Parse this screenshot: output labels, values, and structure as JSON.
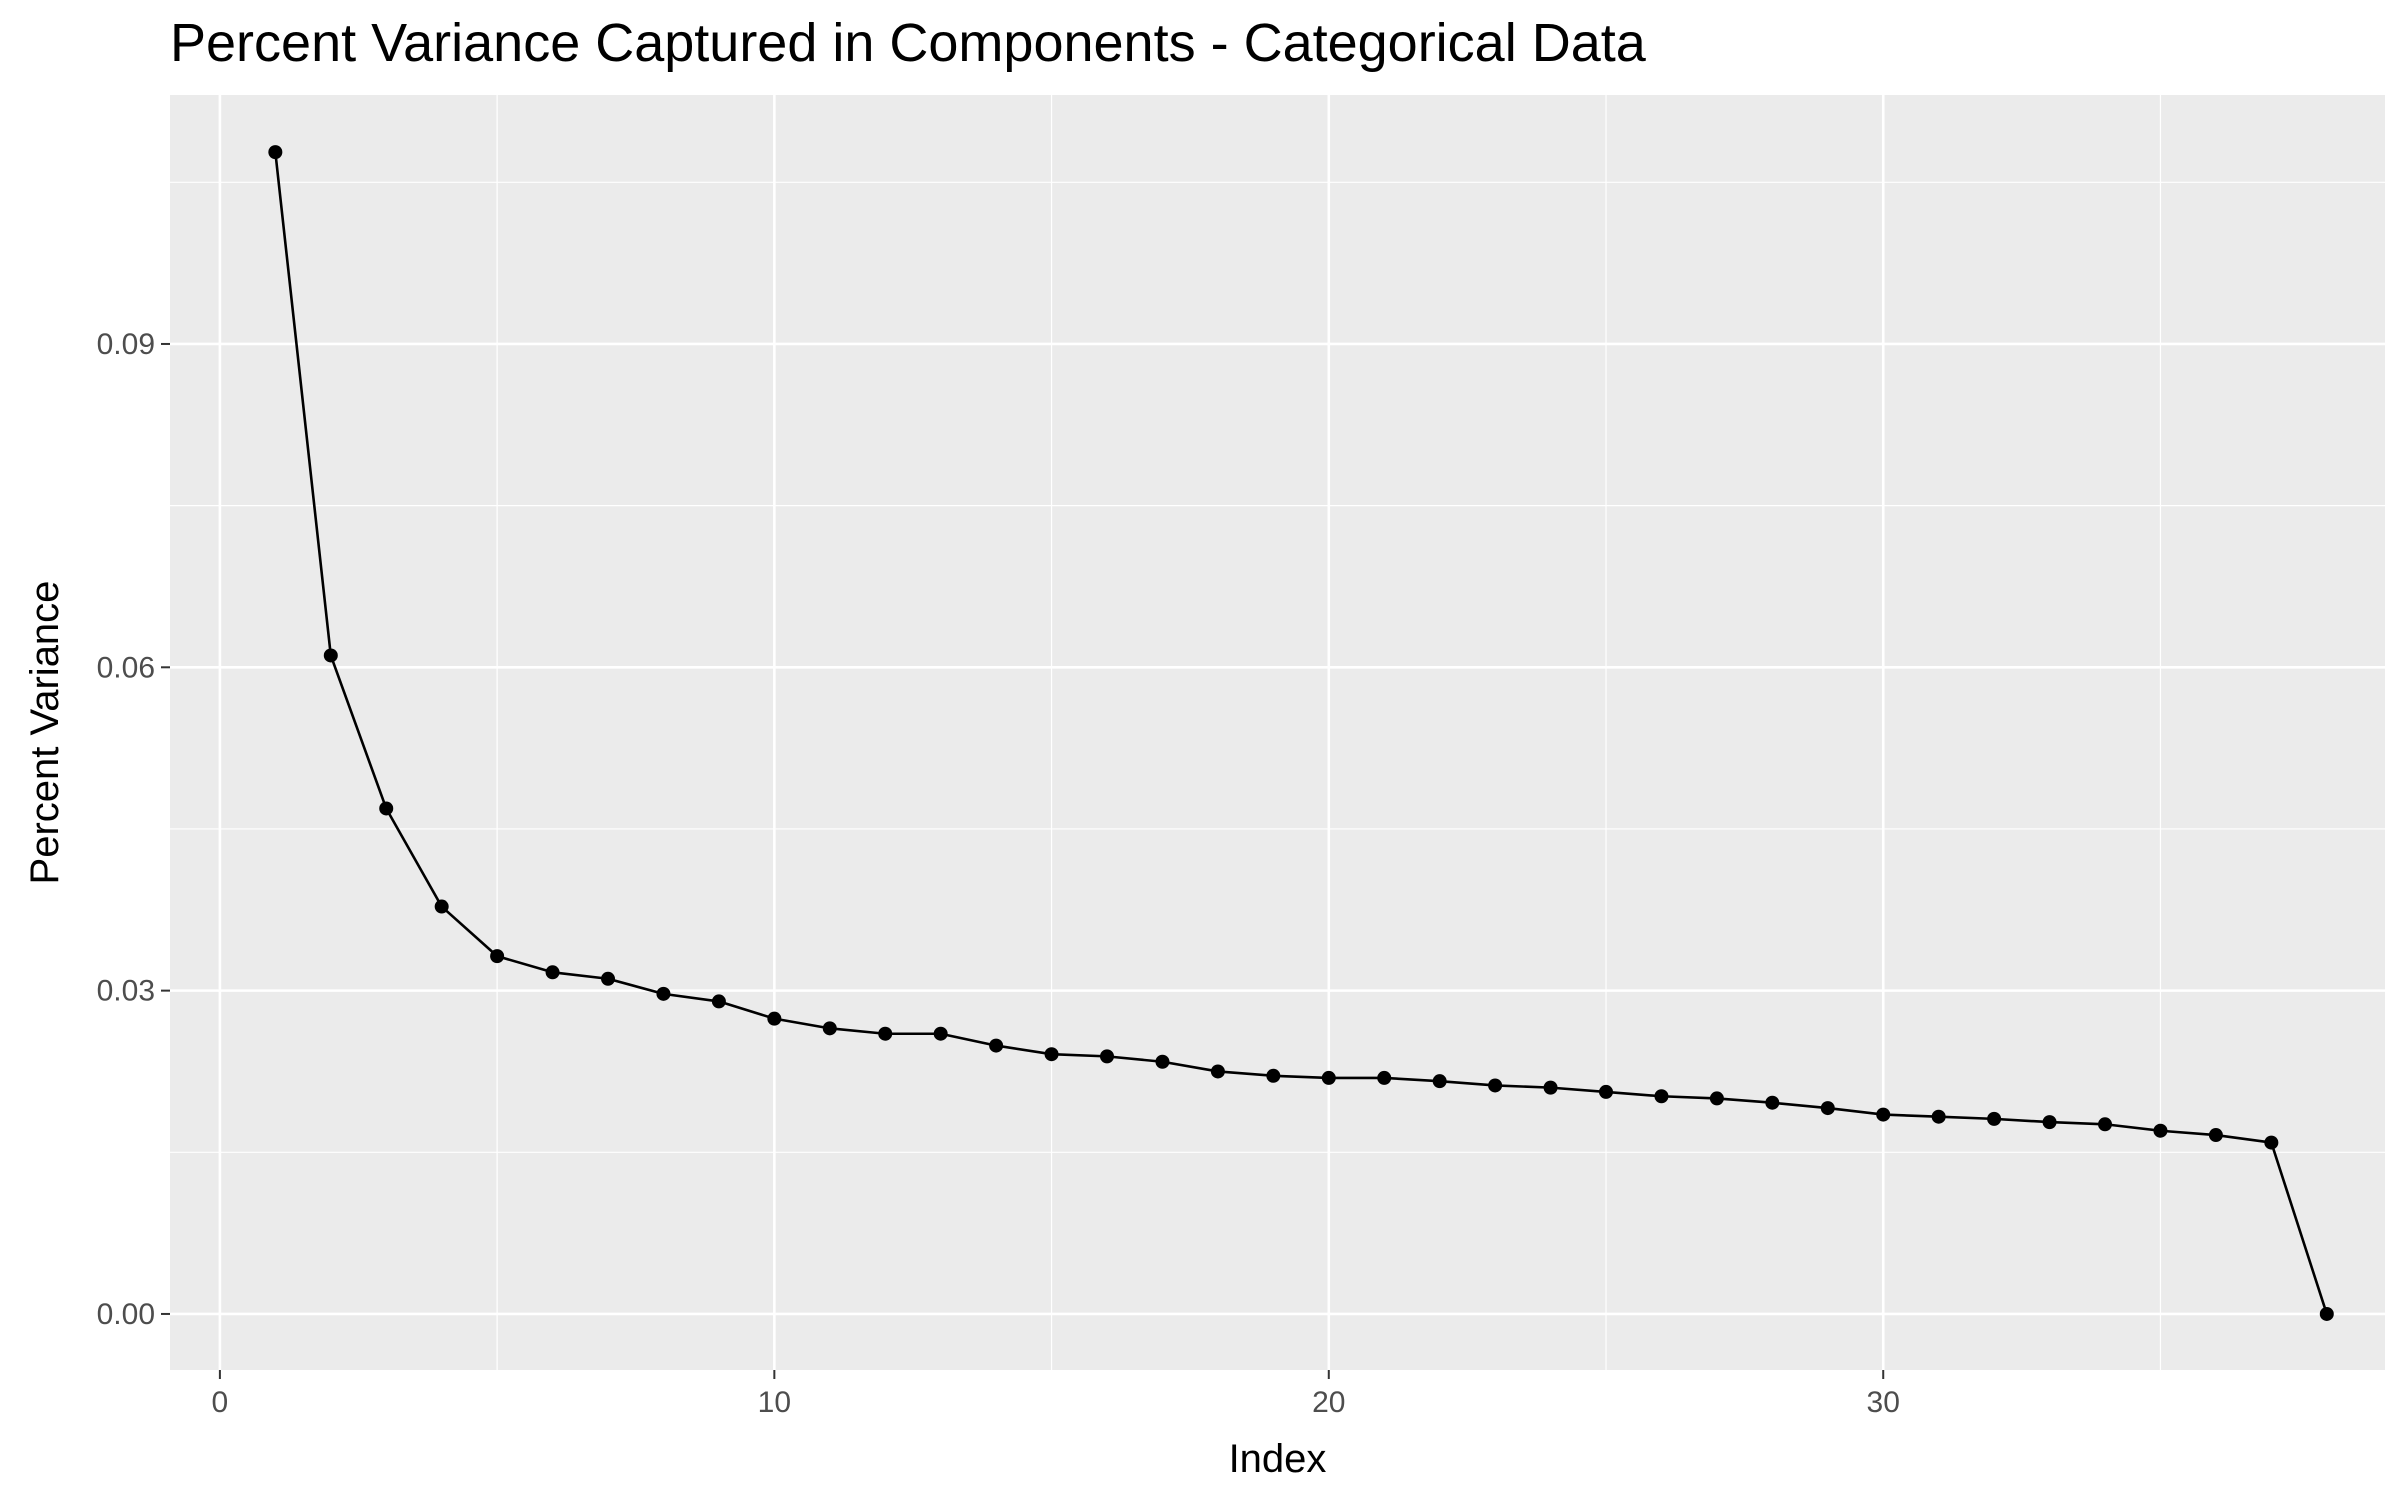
{
  "chart_data": {
    "type": "line",
    "title": "Percent Variance Captured in Components - Categorical Data",
    "xlabel": "Index",
    "ylabel": "Percent Variance",
    "xlim": [
      -0.9,
      39.05
    ],
    "ylim": [
      -0.0052,
      0.1131
    ],
    "x_ticks": [
      0,
      10,
      20,
      30
    ],
    "x_tick_labels": [
      "0",
      "10",
      "20",
      "30"
    ],
    "y_ticks": [
      0.0,
      0.03,
      0.06,
      0.09
    ],
    "y_tick_labels": [
      "0.00",
      "0.03",
      "0.06",
      "0.09"
    ],
    "grid": true,
    "legend": "none",
    "colors": {
      "panel_background": "#ebebeb",
      "grid_line": "#ffffff",
      "series": "#000000",
      "tick_label": "#4d4d4d"
    },
    "series": [
      {
        "x": [
          1,
          2,
          3,
          4,
          5,
          6,
          7,
          8,
          9,
          10,
          11,
          12,
          13,
          14,
          15,
          16,
          17,
          18,
          19,
          20,
          21,
          22,
          23,
          24,
          25,
          26,
          27,
          28,
          29,
          30,
          31,
          32,
          33,
          34,
          35,
          36,
          37,
          38
        ],
        "values": [
          0.1078,
          0.0611,
          0.0469,
          0.0378,
          0.0332,
          0.0317,
          0.0311,
          0.0297,
          0.029,
          0.0274,
          0.0265,
          0.026,
          0.026,
          0.0249,
          0.0241,
          0.0239,
          0.0234,
          0.0225,
          0.0221,
          0.0219,
          0.0219,
          0.0216,
          0.0212,
          0.021,
          0.0206,
          0.0202,
          0.02,
          0.0196,
          0.0191,
          0.0185,
          0.0183,
          0.0181,
          0.0178,
          0.0176,
          0.017,
          0.0166,
          0.0159,
          0.0
        ]
      }
    ]
  }
}
